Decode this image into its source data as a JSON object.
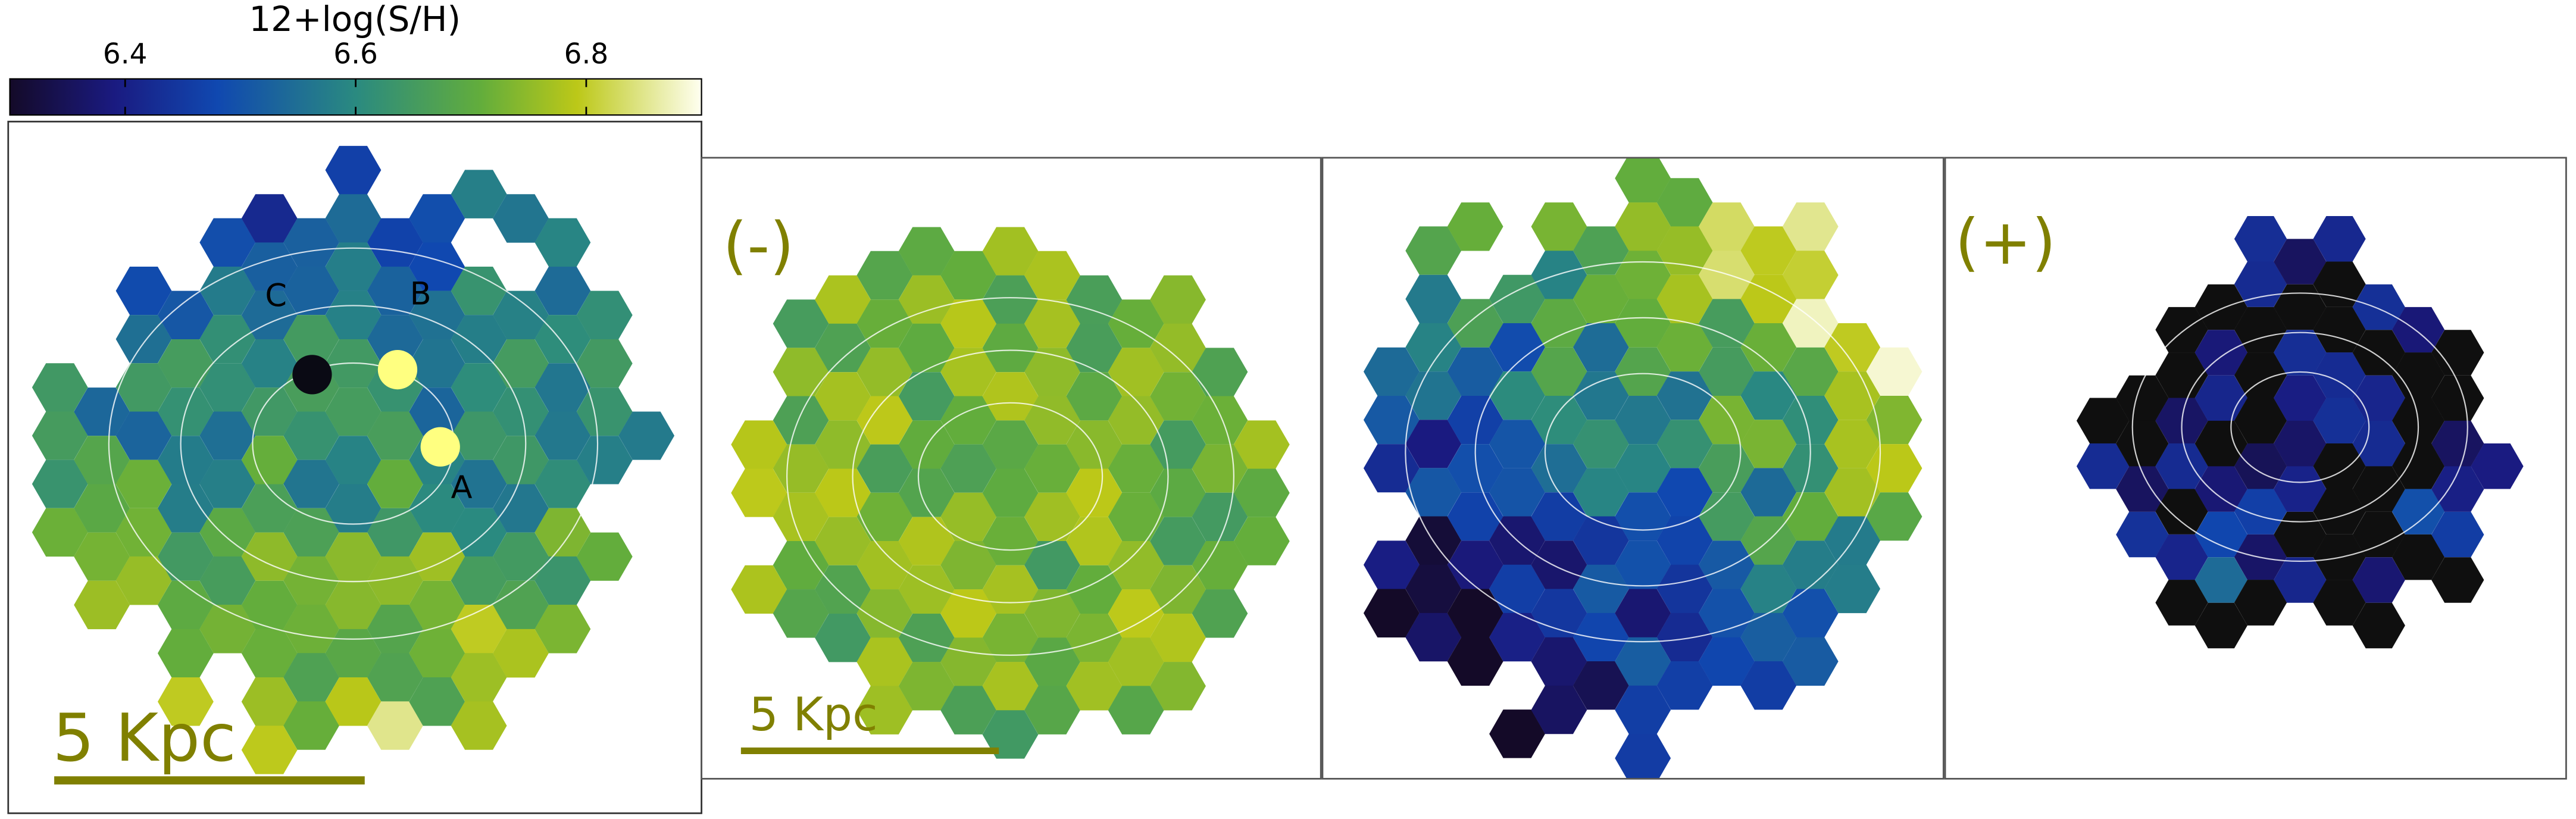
{
  "colorbar": {
    "label": "12+log(S/H)",
    "lim": [
      6.3,
      6.9
    ],
    "ticks": [
      6.4,
      6.6,
      6.8
    ]
  },
  "panels": [
    {
      "scale_label": "5 Kpc",
      "markers": [
        "C",
        "B",
        "A"
      ]
    },
    {
      "tag": "(-)",
      "scale_label": "5 Kpc"
    },
    {},
    {
      "tag": "(+)"
    }
  ]
}
